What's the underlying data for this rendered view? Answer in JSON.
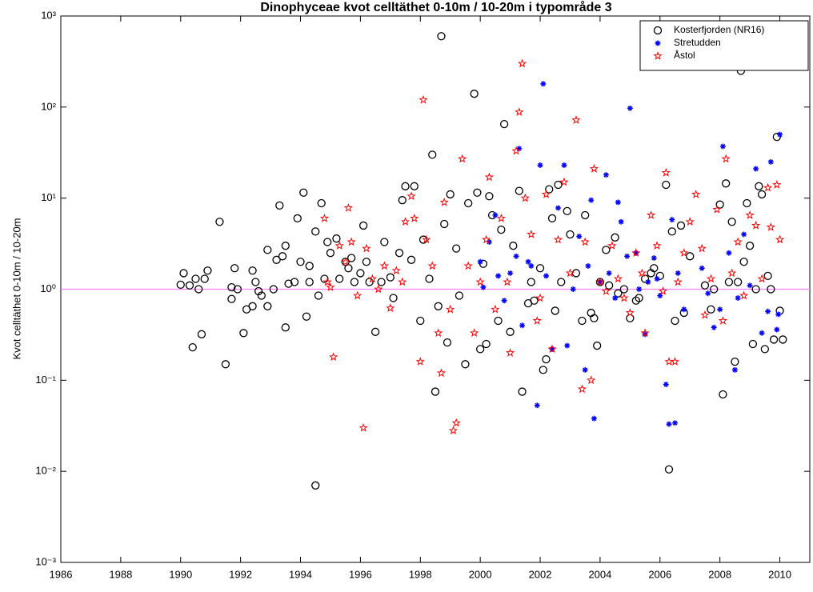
{
  "chart_data": {
    "type": "scatter",
    "title": "Dinophyceae kvot celltäthet 0-10m / 10-20m i typområde 3",
    "ylabel": "Kvot celltäthet 0-10m / 10-20m",
    "xlim": [
      1986,
      2011
    ],
    "xticks": [
      1986,
      1988,
      1990,
      1992,
      1994,
      1996,
      1998,
      2000,
      2002,
      2004,
      2006,
      2008,
      2010
    ],
    "ylim": [
      0.001,
      1000
    ],
    "ylog": true,
    "yticks": [
      {
        "value": 0.001,
        "label": "10⁻³"
      },
      {
        "value": 0.01,
        "label": "10⁻²"
      },
      {
        "value": 0.1,
        "label": "10⁻¹"
      },
      {
        "value": 1,
        "label": "10⁰"
      },
      {
        "value": 10,
        "label": "10¹"
      },
      {
        "value": 100,
        "label": "10²"
      },
      {
        "value": 1000,
        "label": "10³"
      }
    ],
    "reference_line": 1,
    "reference_color": "#ff80ff",
    "legend": "upper right",
    "series": [
      {
        "name": "Kosterfjorden (NR16)",
        "color": "#000000",
        "marker": "circle",
        "x": [
          1990.0,
          1990.1,
          1990.3,
          1990.4,
          1990.5,
          1990.6,
          1990.7,
          1990.8,
          1990.9,
          1991.3,
          1991.5,
          1991.7,
          1991.7,
          1991.8,
          1991.9,
          1992.1,
          1992.2,
          1992.4,
          1992.4,
          1992.5,
          1992.6,
          1992.7,
          1992.9,
          1992.9,
          1993.1,
          1993.2,
          1993.3,
          1993.4,
          1993.5,
          1993.5,
          1993.6,
          1993.8,
          1993.9,
          1994.0,
          1994.1,
          1994.2,
          1994.3,
          1994.3,
          1994.5,
          1994.6,
          1994.5,
          1994.7,
          1994.8,
          1994.9,
          1995.0,
          1995.2,
          1995.3,
          1995.5,
          1995.6,
          1995.7,
          1995.8,
          1996.0,
          1996.1,
          1996.2,
          1996.3,
          1996.5,
          1996.7,
          1996.8,
          1997.0,
          1997.1,
          1997.3,
          1997.4,
          1997.5,
          1997.7,
          1997.8,
          1998.0,
          1998.1,
          1998.3,
          1998.4,
          1998.5,
          1998.6,
          1998.7,
          1998.8,
          1998.9,
          1999.0,
          1999.2,
          1999.3,
          1999.5,
          1999.6,
          1999.8,
          1999.9,
          2000.0,
          2000.1,
          2000.2,
          2000.3,
          2000.4,
          2000.6,
          2000.7,
          2000.8,
          2001.0,
          2001.1,
          2001.3,
          2001.4,
          2001.6,
          2001.7,
          2001.8,
          2002.0,
          2002.1,
          2002.2,
          2002.3,
          2002.4,
          2002.5,
          2002.6,
          2002.7,
          2002.9,
          2003.0,
          2003.2,
          2003.4,
          2003.5,
          2003.7,
          2003.8,
          2003.9,
          2004.0,
          2004.2,
          2004.3,
          2004.5,
          2004.6,
          2004.8,
          2005.0,
          2005.2,
          2005.3,
          2005.5,
          2005.7,
          2005.8,
          2006.0,
          2006.2,
          2006.3,
          2006.4,
          2006.5,
          2006.7,
          2006.8,
          2007.0,
          2007.5,
          2007.7,
          2007.8,
          2008.0,
          2008.1,
          2008.2,
          2008.3,
          2008.4,
          2008.5,
          2008.6,
          2008.7,
          2008.8,
          2008.9,
          2009.0,
          2009.1,
          2009.2,
          2009.3,
          2009.4,
          2009.5,
          2009.6,
          2009.7,
          2009.8,
          2009.9,
          2010.0,
          2010.1
        ],
        "values": [
          1.12,
          1.5,
          1.1,
          0.23,
          1.3,
          1.0,
          0.32,
          1.3,
          1.6,
          5.5,
          0.15,
          1.05,
          0.78,
          1.7,
          1.0,
          0.33,
          0.6,
          1.6,
          0.65,
          1.2,
          0.95,
          0.85,
          2.7,
          0.65,
          1.0,
          2.1,
          8.3,
          2.3,
          3.0,
          0.38,
          1.15,
          1.2,
          6.0,
          2.0,
          11.5,
          0.5,
          1.2,
          1.8,
          4.3,
          0.85,
          0.007,
          8.8,
          1.3,
          3.3,
          2.5,
          3.6,
          1.3,
          2.0,
          1.7,
          2.2,
          1.2,
          1.5,
          5.0,
          2.0,
          1.2,
          0.34,
          1.2,
          3.3,
          1.35,
          0.8,
          2.5,
          9.5,
          13.5,
          2.1,
          13.5,
          0.45,
          3.5,
          1.3,
          30,
          0.075,
          0.65,
          600,
          5.2,
          0.26,
          11,
          2.8,
          0.85,
          0.15,
          8.8,
          140,
          11.5,
          0.22,
          1.9,
          0.25,
          10.5,
          6.5,
          0.45,
          4.5,
          65,
          0.34,
          3.0,
          12,
          0.075,
          0.7,
          1.2,
          0.75,
          1.7,
          0.13,
          0.17,
          12.5,
          6.0,
          0.58,
          14,
          1.2,
          7.2,
          4.0,
          1.5,
          0.45,
          6.5,
          0.55,
          0.48,
          0.24,
          1.2,
          2.7,
          1.1,
          3.7,
          0.9,
          1.0,
          0.48,
          0.75,
          0.8,
          1.3,
          1.5,
          1.7,
          1.4,
          14,
          0.0105,
          4.3,
          0.45,
          5.0,
          0.55,
          2.3,
          1.1,
          0.6,
          1.0,
          8.5,
          0.07,
          14.5,
          1.2,
          5.5,
          0.16,
          1.2,
          250,
          2.0,
          8.8,
          3.0,
          0.25,
          1.0,
          13.5,
          11,
          0.22,
          1.4,
          1.0,
          0.28,
          47,
          0.58,
          0.28
        ]
      },
      {
        "name": "Stretudden",
        "color": "#0000ff",
        "marker": "asterisk",
        "x": [
          2000.0,
          2000.1,
          2000.3,
          2000.5,
          2000.6,
          2000.8,
          2001.0,
          2001.2,
          2001.3,
          2001.4,
          2001.6,
          2001.7,
          2001.9,
          2002.0,
          2002.1,
          2002.2,
          2002.4,
          2002.6,
          2002.8,
          2002.9,
          2003.1,
          2003.3,
          2003.5,
          2003.6,
          2003.7,
          2003.8,
          2004.0,
          2004.2,
          2004.3,
          2004.5,
          2004.6,
          2004.7,
          2004.9,
          2005.0,
          2005.2,
          2005.3,
          2005.5,
          2005.6,
          2005.8,
          2005.9,
          2006.0,
          2006.2,
          2006.3,
          2006.4,
          2006.5,
          2006.6,
          2006.8,
          2007.4,
          2007.6,
          2007.8,
          2008.0,
          2008.1,
          2008.3,
          2008.5,
          2008.6,
          2008.8,
          2009.0,
          2009.2,
          2009.4,
          2009.6,
          2009.7,
          2009.9,
          2010.0,
          2009.95
        ],
        "values": [
          2.0,
          1.05,
          3.3,
          6.5,
          1.4,
          0.75,
          1.5,
          2.3,
          35,
          0.4,
          2.0,
          1.8,
          0.053,
          23,
          180,
          1.4,
          0.22,
          7.8,
          23,
          0.24,
          1.0,
          3.8,
          0.13,
          1.8,
          9.5,
          0.038,
          1.2,
          18,
          1.5,
          0.8,
          9.0,
          5.5,
          2.3,
          97,
          2.5,
          1.0,
          0.32,
          1.2,
          2.2,
          1.3,
          0.85,
          0.09,
          0.033,
          5.8,
          0.034,
          1.5,
          0.6,
          1.7,
          0.9,
          0.38,
          0.6,
          37,
          2.5,
          0.13,
          0.8,
          4.0,
          1.1,
          21,
          0.33,
          0.57,
          25,
          0.36,
          50,
          0.53
        ]
      },
      {
        "name": "Åstol",
        "color": "#ff0000",
        "marker": "pentagram",
        "x": [
          1994.8,
          1994.9,
          1995.0,
          1995.1,
          1995.3,
          1995.5,
          1995.6,
          1995.7,
          1995.9,
          1996.1,
          1996.2,
          1996.4,
          1996.6,
          1996.8,
          1997.0,
          1997.2,
          1997.4,
          1997.5,
          1997.7,
          1997.8,
          1998.0,
          1998.1,
          1998.2,
          1998.4,
          1998.6,
          1998.7,
          1998.8,
          1999.0,
          1999.1,
          1999.2,
          1999.4,
          1999.6,
          1999.8,
          2000.0,
          2000.2,
          2000.3,
          2000.5,
          2000.7,
          2000.9,
          2001.0,
          2001.2,
          2001.3,
          2001.4,
          2001.5,
          2001.7,
          2001.9,
          2002.0,
          2002.2,
          2002.4,
          2002.6,
          2002.8,
          2003.0,
          2003.2,
          2003.4,
          2003.5,
          2003.7,
          2003.8,
          2004.0,
          2004.2,
          2004.4,
          2004.6,
          2004.8,
          2005.0,
          2005.2,
          2005.4,
          2005.5,
          2005.7,
          2005.9,
          2006.1,
          2006.2,
          2006.3,
          2006.5,
          2006.6,
          2006.8,
          2007.0,
          2007.2,
          2007.4,
          2007.5,
          2007.7,
          2007.9,
          2008.1,
          2008.2,
          2008.4,
          2008.6,
          2008.8,
          2009.0,
          2009.2,
          2009.4,
          2009.6,
          2009.7,
          2009.9,
          2010.0
        ],
        "values": [
          6.0,
          1.2,
          1.05,
          0.18,
          3.0,
          2.0,
          7.8,
          3.3,
          0.85,
          0.03,
          2.8,
          1.3,
          1.0,
          1.8,
          0.62,
          1.6,
          1.2,
          5.5,
          10.5,
          6.0,
          0.16,
          120,
          3.5,
          1.8,
          0.33,
          0.12,
          9.0,
          0.6,
          0.028,
          0.034,
          27,
          1.8,
          0.33,
          1.2,
          3.5,
          17,
          0.6,
          6.0,
          1.2,
          0.2,
          33,
          88,
          300,
          10,
          4.0,
          0.45,
          0.8,
          11,
          0.22,
          3.5,
          15,
          1.5,
          72,
          0.08,
          3.3,
          0.1,
          21,
          1.2,
          0.95,
          3.0,
          1.3,
          0.8,
          0.55,
          2.5,
          1.5,
          0.33,
          6.5,
          3.0,
          0.95,
          19,
          0.16,
          0.16,
          1.2,
          2.5,
          5.5,
          11,
          2.8,
          0.52,
          1.3,
          7.5,
          0.45,
          27,
          1.5,
          3.3,
          0.85,
          6.5,
          5.0,
          1.3,
          13,
          4.8,
          14,
          3.5
        ]
      }
    ]
  }
}
